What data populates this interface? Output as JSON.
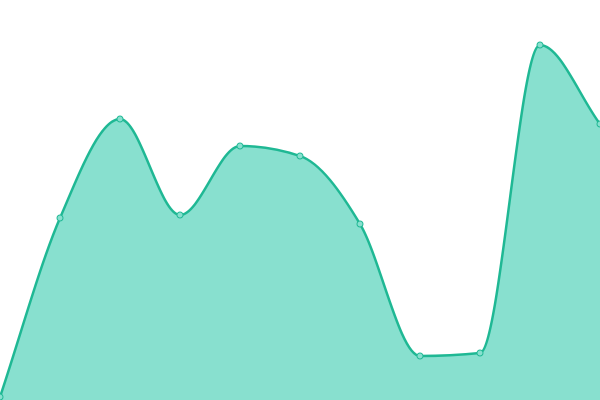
{
  "chart_data": {
    "type": "area",
    "categories": [
      null,
      null,
      null,
      null,
      null,
      null,
      null,
      null,
      null,
      null,
      null
    ],
    "series": [
      {
        "color": "#1fb894",
        "fill": "#88e0cf",
        "values": [
          3,
          182,
          281,
          185,
          254,
          244,
          176,
          44,
          47,
          355,
          276
        ]
      }
    ],
    "ylim": [
      0,
      400
    ],
    "smooth": true,
    "markers": true
  }
}
